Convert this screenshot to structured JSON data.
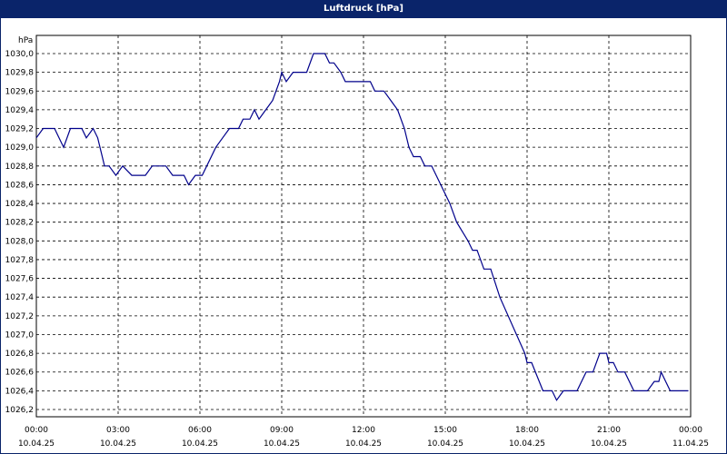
{
  "window": {
    "title": "Luftdruck [hPa]"
  },
  "chart_data": {
    "type": "line",
    "title": "Luftdruck [hPa]",
    "ylabel": "hPa",
    "xlabel": "",
    "ylim": [
      1026.2,
      1030.0
    ],
    "xlim_hours": [
      0,
      24
    ],
    "grid": true,
    "y_ticks": [
      "1026,2",
      "1026,4",
      "1026,6",
      "1026,8",
      "1027,0",
      "1027,2",
      "1027,4",
      "1027,6",
      "1027,8",
      "1028,0",
      "1028,2",
      "1028,4",
      "1028,6",
      "1028,8",
      "1029,0",
      "1029,2",
      "1029,4",
      "1029,6",
      "1029,8",
      "1030,0"
    ],
    "x_ticks": [
      {
        "time": "00:00",
        "date": "10.04.25"
      },
      {
        "time": "03:00",
        "date": "10.04.25"
      },
      {
        "time": "06:00",
        "date": "10.04.25"
      },
      {
        "time": "09:00",
        "date": "10.04.25"
      },
      {
        "time": "12:00",
        "date": "10.04.25"
      },
      {
        "time": "15:00",
        "date": "10.04.25"
      },
      {
        "time": "18:00",
        "date": "10.04.25"
      },
      {
        "time": "21:00",
        "date": "10.04.25"
      },
      {
        "time": "00:00",
        "date": "11.04.25"
      }
    ],
    "series": [
      {
        "color": "#00008b",
        "points": [
          [
            "00:00",
            1029.1
          ],
          [
            "00:15",
            1029.2
          ],
          [
            "00:40",
            1029.2
          ],
          [
            "01:00",
            1029.0
          ],
          [
            "01:15",
            1029.2
          ],
          [
            "01:40",
            1029.2
          ],
          [
            "01:50",
            1029.1
          ],
          [
            "02:05",
            1029.2
          ],
          [
            "02:15",
            1029.1
          ],
          [
            "02:30",
            1028.8
          ],
          [
            "02:40",
            1028.8
          ],
          [
            "02:55",
            1028.7
          ],
          [
            "03:10",
            1028.8
          ],
          [
            "03:30",
            1028.7
          ],
          [
            "04:00",
            1028.7
          ],
          [
            "04:15",
            1028.8
          ],
          [
            "04:45",
            1028.8
          ],
          [
            "05:00",
            1028.7
          ],
          [
            "05:25",
            1028.7
          ],
          [
            "05:35",
            1028.6
          ],
          [
            "05:50",
            1028.7
          ],
          [
            "06:05",
            1028.7
          ],
          [
            "06:35",
            1029.0
          ],
          [
            "06:50",
            1029.1
          ],
          [
            "07:05",
            1029.2
          ],
          [
            "07:25",
            1029.2
          ],
          [
            "07:35",
            1029.3
          ],
          [
            "07:50",
            1029.3
          ],
          [
            "08:00",
            1029.4
          ],
          [
            "08:10",
            1029.3
          ],
          [
            "08:25",
            1029.4
          ],
          [
            "08:40",
            1029.5
          ],
          [
            "08:55",
            1029.7
          ],
          [
            "09:00",
            1029.8
          ],
          [
            "09:10",
            1029.7
          ],
          [
            "09:25",
            1029.8
          ],
          [
            "09:55",
            1029.8
          ],
          [
            "10:10",
            1030.0
          ],
          [
            "10:35",
            1030.0
          ],
          [
            "10:45",
            1029.9
          ],
          [
            "10:55",
            1029.9
          ],
          [
            "11:10",
            1029.8
          ],
          [
            "11:20",
            1029.7
          ],
          [
            "12:15",
            1029.7
          ],
          [
            "12:25",
            1029.6
          ],
          [
            "12:45",
            1029.6
          ],
          [
            "13:00",
            1029.5
          ],
          [
            "13:15",
            1029.4
          ],
          [
            "13:30",
            1029.2
          ],
          [
            "13:40",
            1029.0
          ],
          [
            "13:50",
            1028.9
          ],
          [
            "14:05",
            1028.9
          ],
          [
            "14:15",
            1028.8
          ],
          [
            "14:30",
            1028.8
          ],
          [
            "14:40",
            1028.7
          ],
          [
            "15:10",
            1028.4
          ],
          [
            "15:25",
            1028.2
          ],
          [
            "15:50",
            1028.0
          ],
          [
            "16:00",
            1027.9
          ],
          [
            "16:10",
            1027.9
          ],
          [
            "16:25",
            1027.7
          ],
          [
            "16:40",
            1027.7
          ],
          [
            "17:00",
            1027.4
          ],
          [
            "17:55",
            1026.8
          ],
          [
            "18:00",
            1026.7
          ],
          [
            "18:10",
            1026.7
          ],
          [
            "18:35",
            1026.4
          ],
          [
            "18:55",
            1026.4
          ],
          [
            "19:05",
            1026.3
          ],
          [
            "19:20",
            1026.4
          ],
          [
            "19:50",
            1026.4
          ],
          [
            "20:10",
            1026.6
          ],
          [
            "20:25",
            1026.6
          ],
          [
            "20:40",
            1026.8
          ],
          [
            "20:55",
            1026.8
          ],
          [
            "21:00",
            1026.7
          ],
          [
            "21:10",
            1026.7
          ],
          [
            "21:20",
            1026.6
          ],
          [
            "21:35",
            1026.6
          ],
          [
            "21:55",
            1026.4
          ],
          [
            "22:25",
            1026.4
          ],
          [
            "22:40",
            1026.5
          ],
          [
            "22:50",
            1026.5
          ],
          [
            "22:55",
            1026.6
          ],
          [
            "23:05",
            1026.5
          ],
          [
            "23:15",
            1026.4
          ],
          [
            "23:55",
            1026.4
          ]
        ]
      }
    ]
  }
}
